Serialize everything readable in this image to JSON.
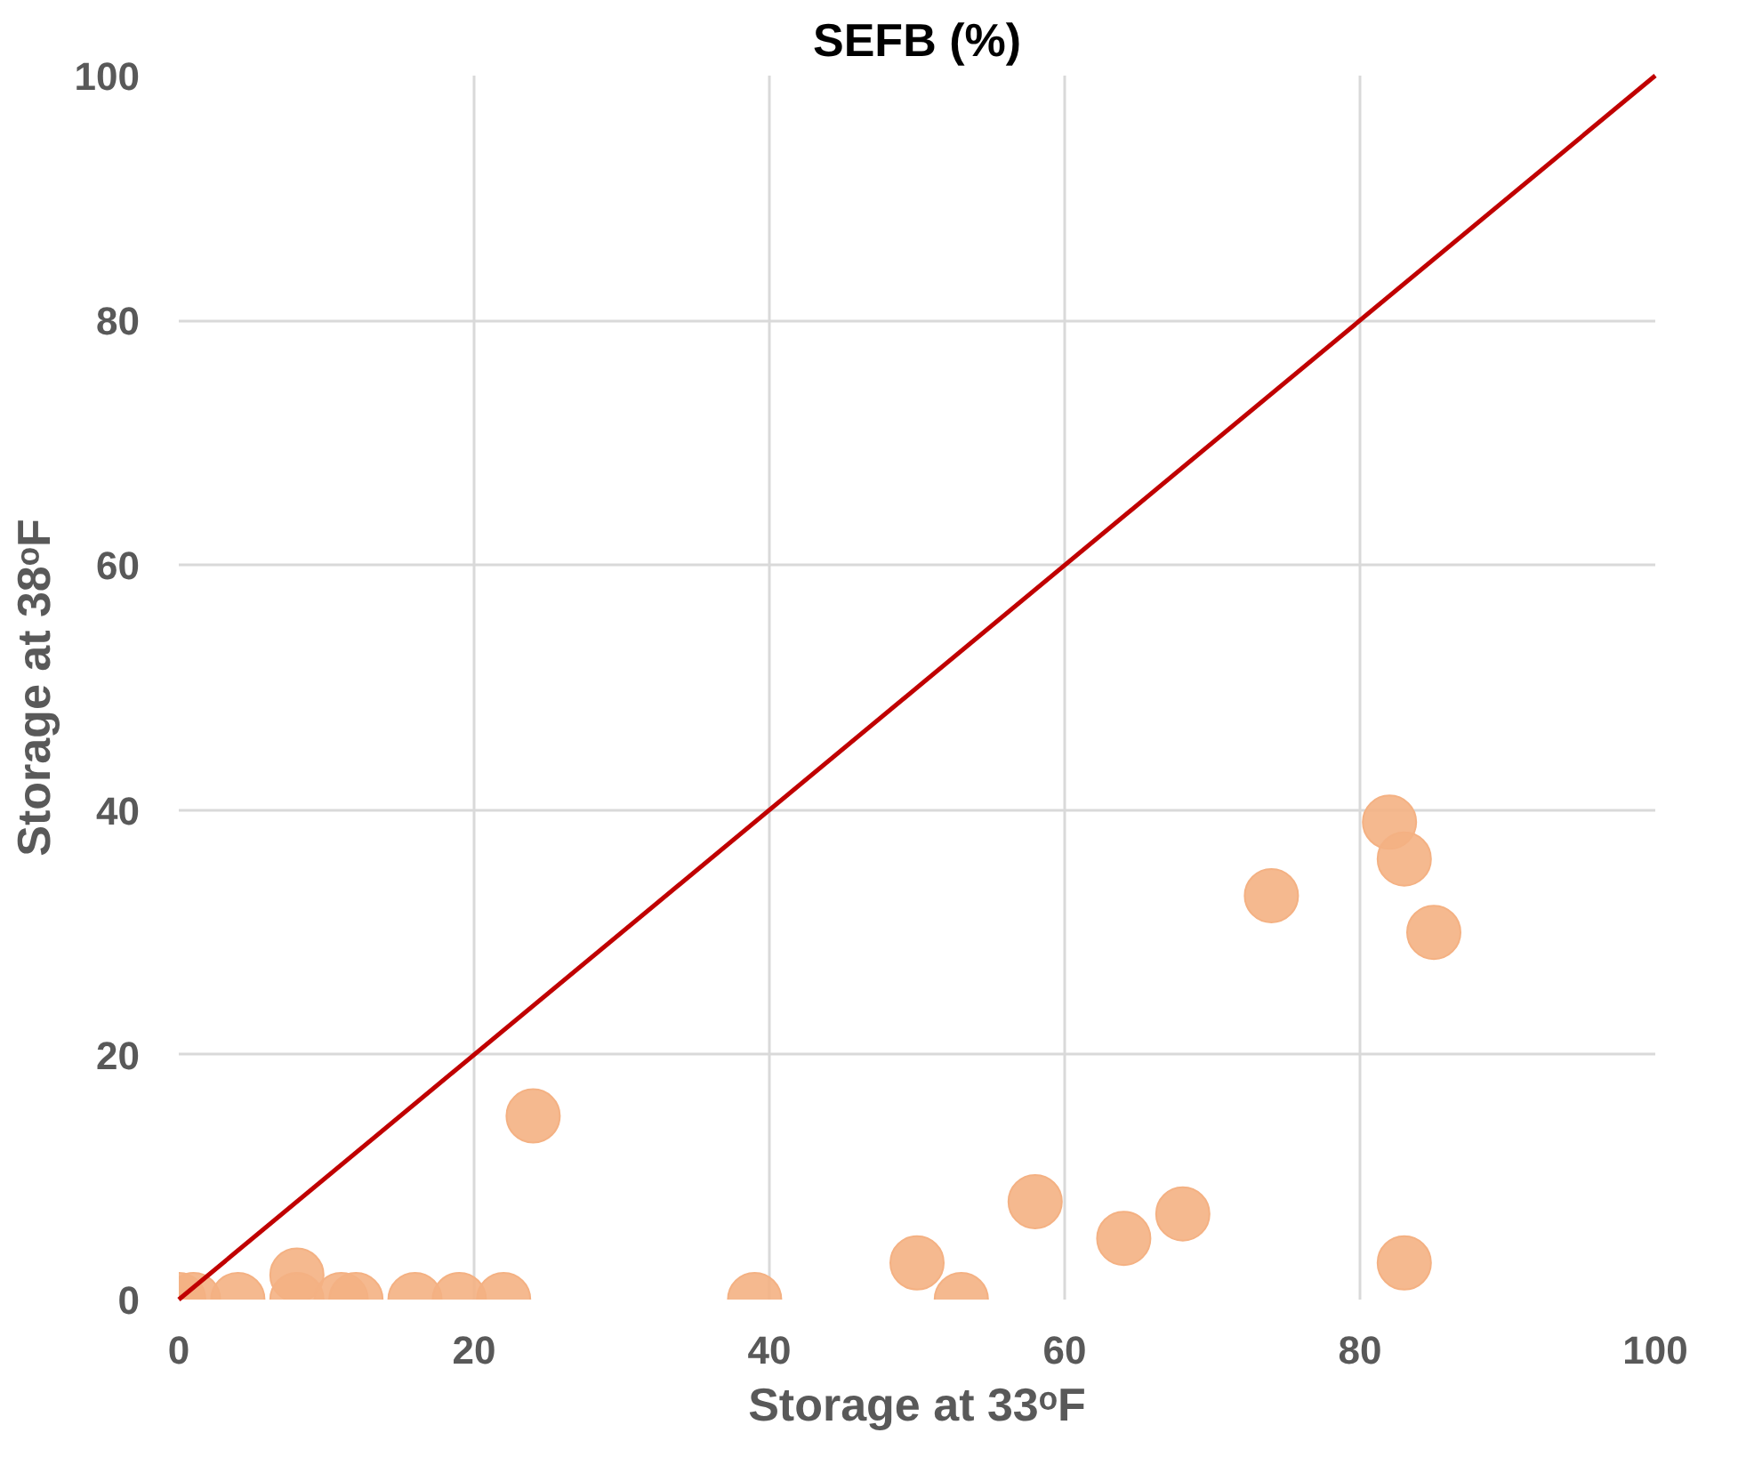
{
  "chart_data": {
    "type": "scatter",
    "title": "SEFB (%)",
    "xlabel": "Storage at 33ᵒF",
    "ylabel": "Storage at 38ᵒF",
    "xlim": [
      0,
      100
    ],
    "ylim": [
      0,
      100
    ],
    "xticks": [
      0,
      20,
      40,
      60,
      80,
      100
    ],
    "yticks": [
      0,
      20,
      40,
      60,
      80,
      100
    ],
    "grid": true,
    "series": [
      {
        "marker": "circle",
        "color": "#f4b183",
        "x": [
          0,
          1,
          4,
          8,
          8,
          11,
          12,
          16,
          19,
          22,
          24,
          39,
          50,
          53,
          58,
          64,
          68,
          74,
          82,
          83,
          85,
          83
        ],
        "values": [
          0,
          0,
          0,
          2,
          0,
          0,
          0,
          0,
          0,
          0,
          15,
          0,
          3,
          0,
          8,
          5,
          7,
          33,
          39,
          36,
          30,
          3
        ]
      },
      {
        "type": "line",
        "color": "#c00000",
        "x": [
          0,
          100
        ],
        "values": [
          0,
          100
        ]
      }
    ]
  }
}
